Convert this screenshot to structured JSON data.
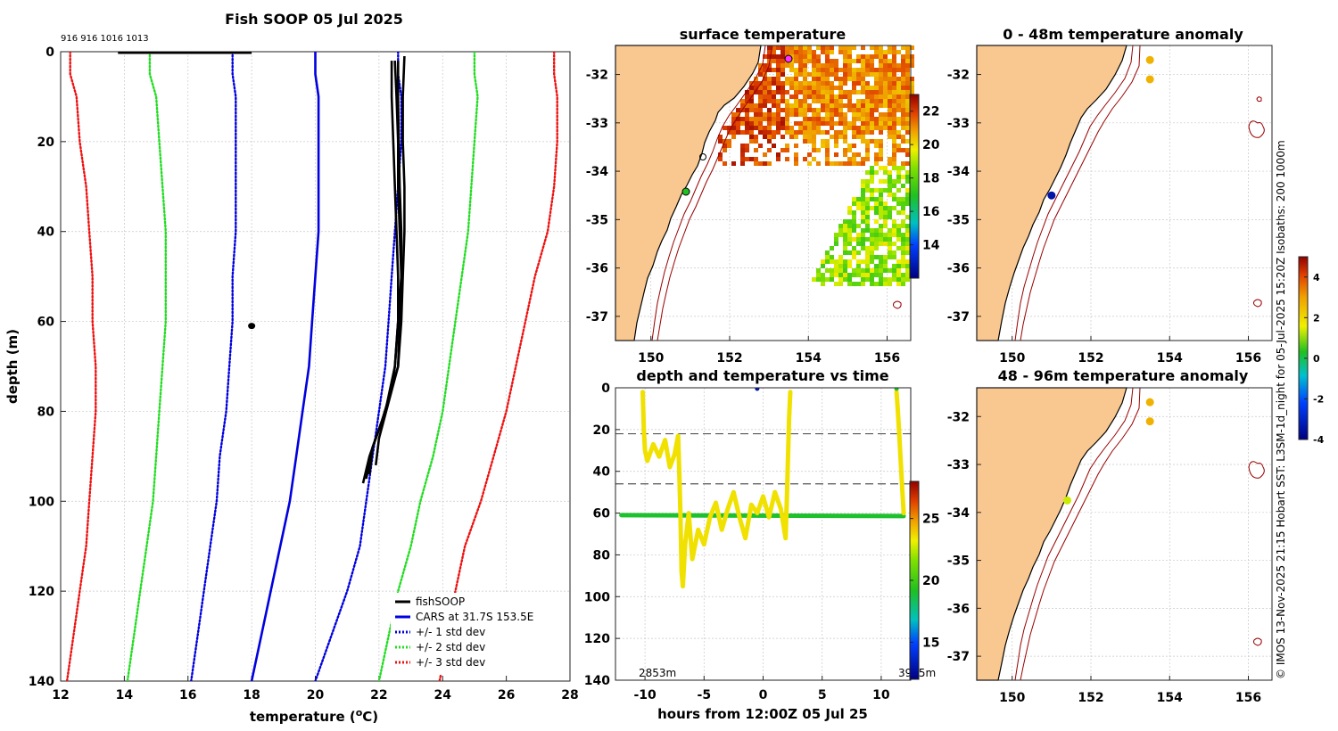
{
  "page": {
    "copyright": "© IMOS 13-Nov-2025 21:15 Hobart SST: L3SM-1d_night for 05-Jul-2025 15:20Z Isobaths: 200  1000m"
  },
  "chart_data": [
    {
      "id": "profile",
      "type": "line",
      "title": "Fish SOOP 05 Jul 2025",
      "xlabel": "temperature (",
      "xlabel_sup": "o",
      "xlabel_tail": "C)",
      "ylabel": "depth (m)",
      "xlim": [
        12,
        28
      ],
      "ylim": [
        140,
        0
      ],
      "xticks": [
        12,
        14,
        16,
        18,
        20,
        22,
        24,
        26,
        28
      ],
      "yticks": [
        0,
        20,
        40,
        60,
        80,
        100,
        120,
        140
      ],
      "top_labels": "916 916 1016 1013",
      "legend": [
        {
          "label": "fishSOOP",
          "color": "#000000",
          "style": "solid"
        },
        {
          "label": "CARS at 31.7S 153.5E",
          "color": "#0000e0",
          "style": "solid"
        },
        {
          "label": "+/- 1 std dev",
          "color": "#0000e0",
          "style": "dotted"
        },
        {
          "label": "+/- 2 std dev",
          "color": "#22dd22",
          "style": "dotted"
        },
        {
          "label": "+/- 3 std dev",
          "color": "#ee1111",
          "style": "dotted"
        }
      ],
      "depth": [
        0,
        5,
        10,
        20,
        30,
        40,
        50,
        60,
        70,
        80,
        90,
        100,
        110,
        120,
        130,
        140
      ],
      "series": [
        {
          "name": "CARS",
          "color": "#0000e0",
          "style": "solid",
          "values": [
            20.0,
            20.0,
            20.1,
            20.1,
            20.1,
            20.1,
            20.0,
            19.9,
            19.8,
            19.6,
            19.4,
            19.2,
            18.9,
            18.6,
            18.3,
            18.0
          ]
        },
        {
          "name": "-1 std",
          "color": "#0000e0",
          "style": "dotted",
          "values": [
            17.4,
            17.4,
            17.5,
            17.5,
            17.5,
            17.5,
            17.4,
            17.4,
            17.3,
            17.2,
            17.0,
            16.9,
            16.7,
            16.5,
            16.3,
            16.1
          ]
        },
        {
          "name": "+1 std",
          "color": "#0000e0",
          "style": "dotted",
          "values": [
            22.6,
            22.6,
            22.7,
            22.7,
            22.6,
            22.5,
            22.4,
            22.3,
            22.2,
            22.0,
            21.8,
            21.6,
            21.4,
            21.0,
            20.5,
            20.0
          ]
        },
        {
          "name": "-2 std",
          "color": "#22dd22",
          "style": "dotted",
          "values": [
            14.8,
            14.8,
            15.0,
            15.1,
            15.2,
            15.3,
            15.3,
            15.3,
            15.2,
            15.1,
            15.0,
            14.9,
            14.7,
            14.5,
            14.3,
            14.1
          ]
        },
        {
          "name": "+2 std",
          "color": "#22dd22",
          "style": "dotted",
          "values": [
            25.0,
            25.0,
            25.1,
            25.0,
            24.9,
            24.8,
            24.6,
            24.4,
            24.2,
            24.0,
            23.7,
            23.3,
            23.0,
            22.6,
            22.3,
            22.0
          ]
        },
        {
          "name": "-3 std",
          "color": "#ee1111",
          "style": "dotted",
          "values": [
            12.3,
            12.3,
            12.5,
            12.6,
            12.8,
            12.9,
            13.0,
            13.0,
            13.1,
            13.1,
            13.0,
            12.9,
            12.8,
            12.6,
            12.4,
            12.2
          ]
        },
        {
          "name": "+3 std",
          "color": "#ee1111",
          "style": "dotted",
          "values": [
            27.5,
            27.5,
            27.6,
            27.6,
            27.5,
            27.3,
            26.9,
            26.6,
            26.3,
            26.0,
            25.6,
            25.2,
            24.7,
            24.4,
            24.2,
            23.9
          ]
        }
      ],
      "fishsoop_surface": {
        "x0": 13.8,
        "x1": 18.0,
        "depth": 0
      },
      "fishsoop_point": {
        "x": 18.0,
        "depth": 61
      },
      "fishsoop_casts": [
        {
          "temps": [
            22.4,
            22.4,
            22.45,
            22.5,
            22.55,
            22.6,
            22.6,
            22.5,
            22.4,
            22.1,
            21.7,
            21.5
          ],
          "depths": [
            2,
            10,
            20,
            30,
            40,
            50,
            60,
            70,
            75,
            82,
            90,
            96
          ]
        },
        {
          "temps": [
            22.6,
            22.6,
            22.62,
            22.65,
            22.7,
            22.7,
            22.65,
            22.6,
            22.4,
            22.1,
            21.8,
            21.7
          ],
          "depths": [
            2,
            10,
            20,
            30,
            40,
            50,
            60,
            70,
            75,
            82,
            88,
            94
          ]
        },
        {
          "temps": [
            22.8,
            22.75,
            22.75,
            22.8,
            22.8,
            22.75,
            22.7,
            22.6,
            22.3,
            22.0,
            21.9
          ],
          "depths": [
            1,
            10,
            20,
            30,
            40,
            50,
            60,
            70,
            78,
            86,
            92
          ]
        },
        {
          "temps": [
            22.5,
            22.55,
            22.6,
            22.6,
            22.65,
            22.7,
            22.6,
            22.5,
            22.2,
            21.8,
            21.6
          ],
          "depths": [
            2,
            10,
            20,
            30,
            40,
            50,
            60,
            70,
            80,
            88,
            95
          ]
        }
      ]
    },
    {
      "id": "sst",
      "type": "heatmap",
      "title": "surface temperature",
      "xlim": [
        149.1,
        156.6
      ],
      "ylim": [
        -37.5,
        -31.4
      ],
      "xticks": [
        150,
        152,
        154,
        156
      ],
      "yticks": [
        -32,
        -33,
        -34,
        -35,
        -36,
        -37
      ],
      "colorbar": {
        "min": 12,
        "max": 23,
        "ticks": [
          14,
          16,
          18,
          20,
          22
        ]
      }
    },
    {
      "id": "anom0",
      "type": "scatter",
      "title": "0 - 48m temperature anomaly",
      "xlim": [
        149.1,
        156.6
      ],
      "ylim": [
        -37.5,
        -31.4
      ],
      "xticks": [
        150,
        152,
        154,
        156
      ],
      "yticks": [
        -32,
        -33,
        -34,
        -35,
        -36,
        -37
      ],
      "points": [
        {
          "lon": 153.5,
          "lat": -31.7,
          "value": 3
        },
        {
          "lon": 153.5,
          "lat": -32.1,
          "value": 3
        },
        {
          "lon": 151.0,
          "lat": -34.5,
          "value": -3.5
        }
      ]
    },
    {
      "id": "anom1",
      "type": "scatter",
      "title": "48 - 96m temperature anomaly",
      "xlim": [
        149.1,
        156.6
      ],
      "ylim": [
        -37.5,
        -31.4
      ],
      "xticks": [
        150,
        152,
        154,
        156
      ],
      "yticks": [
        -32,
        -33,
        -34,
        -35,
        -36,
        -37
      ],
      "points": [
        {
          "lon": 153.5,
          "lat": -31.7,
          "value": 3
        },
        {
          "lon": 153.5,
          "lat": -32.1,
          "value": 3
        },
        {
          "lon": 151.4,
          "lat": -33.75,
          "value": 2
        }
      ]
    },
    {
      "id": "anom_colorbar",
      "type": "heatmap",
      "title": "",
      "colorbar": {
        "min": -4,
        "max": 5,
        "ticks": [
          -4,
          -2,
          0,
          2,
          4
        ]
      }
    },
    {
      "id": "timeseries",
      "type": "scatter",
      "title": "depth and temperature vs time",
      "xlabel": "hours from 12:00Z 05 Jul 25",
      "xlim": [
        -12.5,
        12.5
      ],
      "ylim": [
        140,
        0
      ],
      "xticks": [
        -10,
        -5,
        0,
        5,
        10
      ],
      "yticks": [
        0,
        20,
        40,
        60,
        80,
        100,
        120,
        140
      ],
      "dashed_lines": [
        22,
        46
      ],
      "left_note": "2853m",
      "right_note": "3905m",
      "colorbar": {
        "min": 12,
        "max": 28,
        "ticks": [
          15,
          20,
          25
        ]
      },
      "bottom_series": {
        "temp": 19,
        "t0": -12,
        "t1": 11.9,
        "depth": 61
      },
      "casts": [
        {
          "temp": 23.5,
          "t": [
            -10.2,
            -10.1,
            -10.0,
            -9.8,
            -9.3,
            -8.8,
            -8.3,
            -7.9,
            -7.5,
            -7.2,
            -7.1,
            -7.0,
            -6.9,
            -6.8,
            -6.6,
            -6.3,
            -6.0,
            -5.5,
            -5.0,
            -4.5,
            -4.0,
            -3.5,
            -3.0,
            -2.5,
            -2.0,
            -1.5,
            -1.0,
            -0.5,
            0.0,
            0.5,
            1.0,
            1.5,
            1.9,
            2.0,
            2.1,
            2.2,
            2.3
          ],
          "depth": [
            2,
            20,
            30,
            35,
            27,
            33,
            25,
            38,
            32,
            23,
            40,
            60,
            88,
            95,
            75,
            60,
            82,
            68,
            75,
            62,
            55,
            68,
            58,
            50,
            62,
            72,
            56,
            60,
            52,
            62,
            50,
            58,
            72,
            55,
            35,
            15,
            2
          ]
        },
        {
          "temp": 23.5,
          "t": [
            11.3,
            11.4,
            11.5,
            11.6,
            11.7,
            11.8,
            11.9
          ],
          "depth": [
            2,
            10,
            20,
            30,
            40,
            50,
            60
          ]
        }
      ],
      "surface_dots": [
        {
          "t": -0.5,
          "depth": 0,
          "temp": 13
        },
        {
          "t": 11.3,
          "depth": 0,
          "temp": 19
        }
      ]
    }
  ]
}
